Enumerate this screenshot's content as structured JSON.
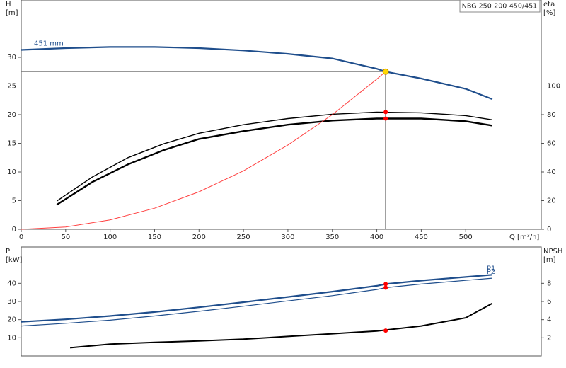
{
  "chart_data": [
    {
      "type": "line",
      "title": "NBG 250-200-450/451",
      "ylabel": [
        "H",
        "[m]"
      ],
      "y2label": [
        "eta",
        "[%]"
      ],
      "xlabel": "Q [m³/h]",
      "xlim": [
        0,
        585
      ],
      "xticks": [
        0,
        50,
        100,
        150,
        200,
        250,
        300,
        350,
        400,
        450,
        500
      ],
      "ylim": [
        0,
        40
      ],
      "yticks": [
        0,
        5,
        10,
        15,
        20,
        25,
        30
      ],
      "y2lim": [
        0,
        160
      ],
      "y2ticks": [
        0,
        20,
        40,
        60,
        80,
        100
      ],
      "series": [
        {
          "name": "451 mm",
          "label_at": "start",
          "color": "#1f4e8c",
          "width": 2.2,
          "x": [
            0,
            50,
            100,
            150,
            200,
            250,
            300,
            350,
            400,
            410,
            450,
            500,
            530
          ],
          "values": [
            31.3,
            31.6,
            31.8,
            31.8,
            31.6,
            31.2,
            30.6,
            29.8,
            28.0,
            27.5,
            26.3,
            24.5,
            22.7
          ]
        },
        {
          "axis": "y2",
          "color": "#000000",
          "width": 1.4,
          "x": [
            40,
            80,
            120,
            160,
            200,
            250,
            300,
            350,
            400,
            450,
            500,
            530
          ],
          "values": [
            19.7,
            36.5,
            50,
            59.6,
            67,
            73,
            77.3,
            80.3,
            81.8,
            81.3,
            79.3,
            76.4
          ]
        },
        {
          "axis": "y2",
          "color": "#000000",
          "width": 2.4,
          "x": [
            40,
            80,
            120,
            160,
            200,
            250,
            300,
            350,
            400,
            450,
            500,
            530
          ],
          "values": [
            17.2,
            33,
            45.3,
            55.2,
            63,
            68.5,
            73,
            75.9,
            77.3,
            77.3,
            75.4,
            72.4
          ]
        },
        {
          "color": "#ff4040",
          "width": 1,
          "x": [
            0,
            50,
            100,
            150,
            200,
            250,
            300,
            350,
            400,
            410
          ],
          "values": [
            0,
            0.41,
            1.64,
            3.68,
            6.54,
            10.2,
            14.7,
            20.0,
            26.2,
            27.5
          ]
        }
      ],
      "points": [
        {
          "x": 410,
          "y": 27.5,
          "color": "#ffd700",
          "guide": true
        },
        {
          "x": 410,
          "y": 81.8,
          "axis": "y2",
          "color": "#ff0000"
        },
        {
          "x": 410,
          "y": 77.3,
          "axis": "y2",
          "color": "#ff0000"
        }
      ]
    },
    {
      "type": "line",
      "ylabel": [
        "P",
        "[kW]"
      ],
      "y2label": [
        "NPSH",
        "[m]"
      ],
      "xlim": [
        0,
        585
      ],
      "ylim": [
        0,
        60
      ],
      "yticks": [
        10,
        20,
        30,
        40
      ],
      "y2lim": [
        0,
        12
      ],
      "y2ticks": [
        2,
        4,
        6,
        8
      ],
      "series": [
        {
          "name": "P1",
          "label_at": "end",
          "color": "#1f4e8c",
          "width": 2.2,
          "x": [
            0,
            50,
            100,
            150,
            200,
            250,
            300,
            350,
            400,
            410,
            450,
            500,
            530
          ],
          "values": [
            18.8,
            20.2,
            22.0,
            24.2,
            26.8,
            29.6,
            32.5,
            35.4,
            38.6,
            39.6,
            41.5,
            43.5,
            44.7
          ]
        },
        {
          "name": "P2",
          "label_at": "end",
          "color": "#1f4e8c",
          "width": 1.2,
          "x": [
            0,
            50,
            100,
            150,
            200,
            250,
            300,
            350,
            400,
            410,
            450,
            500,
            530
          ],
          "values": [
            16.5,
            18.0,
            19.7,
            22.0,
            24.6,
            27.4,
            30.3,
            33.2,
            36.6,
            37.6,
            39.6,
            41.6,
            42.8
          ]
        },
        {
          "axis": "y2",
          "color": "#000000",
          "width": 2,
          "x": [
            55,
            100,
            150,
            200,
            250,
            300,
            350,
            400,
            450,
            500,
            530
          ],
          "values": [
            0.9,
            1.3,
            1.5,
            1.65,
            1.85,
            2.15,
            2.45,
            2.75,
            3.3,
            4.2,
            5.8
          ]
        }
      ],
      "points": [
        {
          "x": 410,
          "y": 39.6,
          "color": "#ff0000"
        },
        {
          "x": 410,
          "y": 37.6,
          "color": "#ff0000"
        },
        {
          "x": 410,
          "y": 2.8,
          "axis": "y2",
          "color": "#ff0000"
        }
      ]
    }
  ]
}
